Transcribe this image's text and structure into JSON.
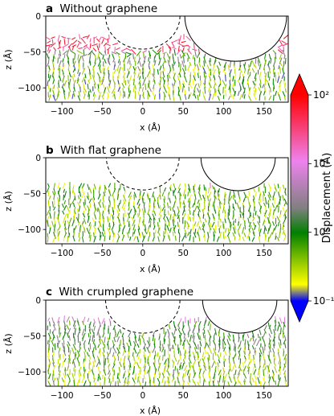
{
  "chart_data": [
    {
      "type": "quiver",
      "panel_letter": "a",
      "title": "Without graphene",
      "xlabel": "x (Å)",
      "ylabel": "z (Å)",
      "xlim": [
        -120,
        180
      ],
      "ylim": [
        -120,
        0
      ],
      "xticks": [
        -100,
        -50,
        0,
        50,
        100,
        150
      ],
      "yticks": [
        0,
        -50,
        -100
      ],
      "xticklabels": [
        "−100",
        "−50",
        "0",
        "50",
        "100",
        "150"
      ],
      "yticklabels": [
        "0",
        "−50",
        "−100"
      ],
      "circles": [
        {
          "cx": 0,
          "cz": 0,
          "r": 46,
          "style": "dashed"
        },
        {
          "cx": 115,
          "cz": 0,
          "r": 63,
          "style": "solid"
        }
      ],
      "field": {
        "zmin": -118,
        "regions": [
          {
            "zmax": -50,
            "mean_log": 1.55,
            "dispersion": 0.35
          },
          {
            "zmax": -70,
            "mean_log": 0.0,
            "dispersion": 0.55
          },
          {
            "zmax": -120,
            "mean_log": -0.45,
            "dispersion": 0.5
          }
        ]
      },
      "grid": false
    },
    {
      "type": "quiver",
      "panel_letter": "b",
      "title": "With flat graphene",
      "xlabel": "x (Å)",
      "ylabel": "z (Å)",
      "xlim": [
        -120,
        180
      ],
      "ylim": [
        -120,
        0
      ],
      "xticks": [
        -100,
        -50,
        0,
        50,
        100,
        150
      ],
      "yticks": [
        0,
        -50,
        -100
      ],
      "xticklabels": [
        "−100",
        "−50",
        "0",
        "50",
        "100",
        "150"
      ],
      "yticklabels": [
        "0",
        "−50",
        "−100"
      ],
      "circles": [
        {
          "cx": 0,
          "cz": 0,
          "r": 45,
          "style": "dashed"
        },
        {
          "cx": 118,
          "cz": 0,
          "r": 46,
          "style": "solid"
        }
      ],
      "field": {
        "zmin": -118,
        "regions": [
          {
            "zmax": -40,
            "mean_log": -0.35,
            "dispersion": 0.45,
            "hot_x": [
              60,
              150
            ],
            "hot_log": 0.9
          },
          {
            "zmax": -120,
            "mean_log": -0.3,
            "dispersion": 0.45
          }
        ]
      },
      "grid": false
    },
    {
      "type": "quiver",
      "panel_letter": "c",
      "title": "With crumpled graphene",
      "xlabel": "x (Å)",
      "ylabel": "z (Å)",
      "xlim": [
        -120,
        180
      ],
      "ylim": [
        -120,
        0
      ],
      "xticks": [
        -100,
        -50,
        0,
        50,
        100,
        150
      ],
      "yticks": [
        0,
        -50,
        -100
      ],
      "xticklabels": [
        "−100",
        "−50",
        "0",
        "50",
        "100",
        "150"
      ],
      "yticklabels": [
        "0",
        "−50",
        "−100"
      ],
      "circles": [
        {
          "cx": 0,
          "cz": 0,
          "r": 46,
          "style": "dashed"
        },
        {
          "cx": 120,
          "cz": 0,
          "r": 46,
          "style": "solid"
        }
      ],
      "field": {
        "zmin": -118,
        "regions": [
          {
            "zmax": -30,
            "mean_log": 0.9,
            "dispersion": 0.25
          },
          {
            "zmax": -70,
            "mean_log": 0.05,
            "dispersion": 0.45
          },
          {
            "zmax": -120,
            "mean_log": -0.45,
            "dispersion": 0.45
          }
        ]
      },
      "grid": false
    }
  ],
  "colorbar": {
    "label": "Displacement (Å)",
    "scale": "log",
    "range": [
      0.1,
      100
    ],
    "extend": "both",
    "tick_values": [
      0.1,
      1,
      10,
      100
    ],
    "tick_labels": [
      "10⁻¹",
      "10⁰",
      "10¹",
      "10²"
    ],
    "color_stops": [
      "#0000ff",
      "#ffff00",
      "#008000",
      "#808080",
      "#ee82ee",
      "#ff0000"
    ],
    "stop_positions": [
      0.0,
      0.08,
      0.33,
      0.45,
      0.68,
      1.0
    ],
    "extend_colors": {
      "low": "#0000ff",
      "high": "#ff0000"
    }
  }
}
